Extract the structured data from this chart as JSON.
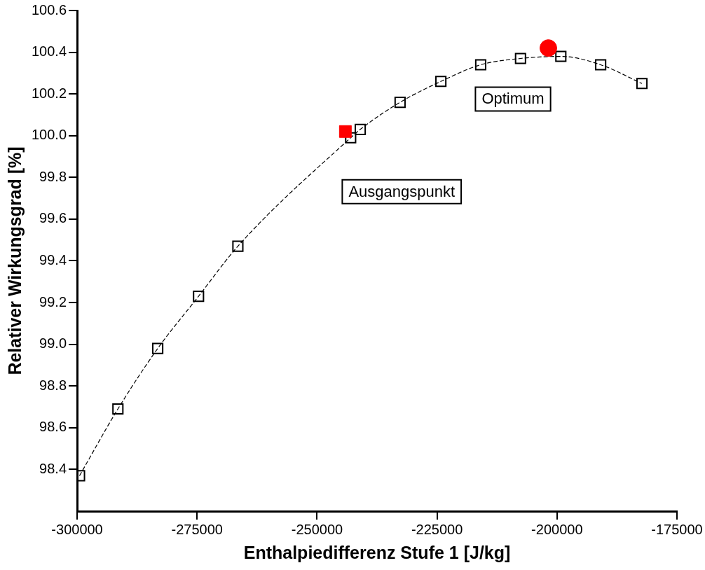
{
  "chart_data": {
    "type": "line",
    "xlabel": "Enthalpiedifferenz Stufe 1 [J/kg]",
    "ylabel": "Relativer Wirkungsgrad [%]",
    "xlim": [
      -300000,
      -175000
    ],
    "xticks": [
      -300000,
      -275000,
      -250000,
      -225000,
      -200000,
      -175000
    ],
    "ylim": [
      98.2,
      100.6
    ],
    "yticks": [
      98.4,
      98.6,
      98.8,
      {
        "value": 99,
        "label": "99.0"
      },
      99.2,
      99.4,
      99.6,
      99.8,
      {
        "value": 100,
        "label": "100.0"
      },
      100.2,
      100.4,
      100.6
    ],
    "grid": false,
    "legend": false,
    "series": [
      {
        "color": "#000000",
        "marker": "square",
        "line_style": "dashed",
        "x": [
          -299500,
          -291500,
          -283200,
          -274700,
          -266500,
          -243000,
          -241000,
          -232700,
          -224200,
          -215900,
          -207600,
          -199200,
          -190900,
          -182300
        ],
        "values": [
          98.37,
          98.69,
          98.98,
          99.23,
          99.47,
          99.99,
          100.03,
          100.16,
          100.26,
          100.34,
          100.37,
          100.38,
          100.34,
          100.25
        ]
      },
      {
        "type": "scatter",
        "color": "#ff0000",
        "marker": "square",
        "x": [
          -244100
        ],
        "values": [
          100.02
        ]
      },
      {
        "type": "scatter",
        "color": "#ff0000",
        "marker": "circle",
        "x": [
          -201800
        ],
        "values": [
          100.42
        ]
      }
    ],
    "annotations": [
      "Ausgangspunkt",
      "Optimum"
    ]
  }
}
